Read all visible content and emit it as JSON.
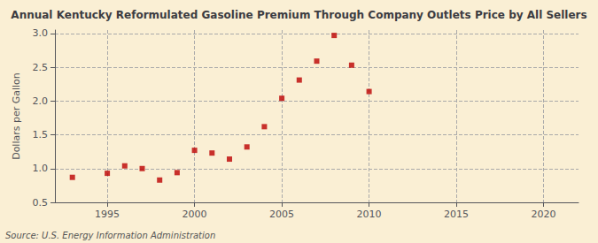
{
  "chart_data": {
    "type": "scatter",
    "title": "Annual Kentucky Reformulated Gasoline Premium Through Company Outlets Price by All Sellers",
    "ylabel": "Dollars per Gallon",
    "annotations": [
      "Source: U.S. Energy Information Administration"
    ],
    "x": [
      1993,
      1995,
      1996,
      1997,
      1998,
      1999,
      2000,
      2001,
      2002,
      2003,
      2004,
      2005,
      2006,
      2007,
      2008,
      2009,
      2010
    ],
    "values": [
      0.87,
      0.93,
      1.04,
      1.0,
      0.83,
      0.94,
      1.27,
      1.23,
      1.14,
      1.32,
      1.62,
      2.04,
      2.31,
      2.59,
      2.97,
      2.53,
      2.14
    ],
    "color": "#bb0000",
    "marker": "square",
    "xlim": [
      1992,
      2022
    ],
    "xticks": [
      1995,
      2000,
      2005,
      2010,
      2015,
      2020
    ],
    "ylim": [
      0.5,
      3.05
    ],
    "yticks": [
      0.5,
      {
        "value": 1.0,
        "label": "1.0"
      },
      1.5,
      {
        "value": 2.0,
        "label": "2.0"
      },
      2.5,
      {
        "value": 3.0,
        "label": "3.0"
      }
    ],
    "grid": true
  }
}
